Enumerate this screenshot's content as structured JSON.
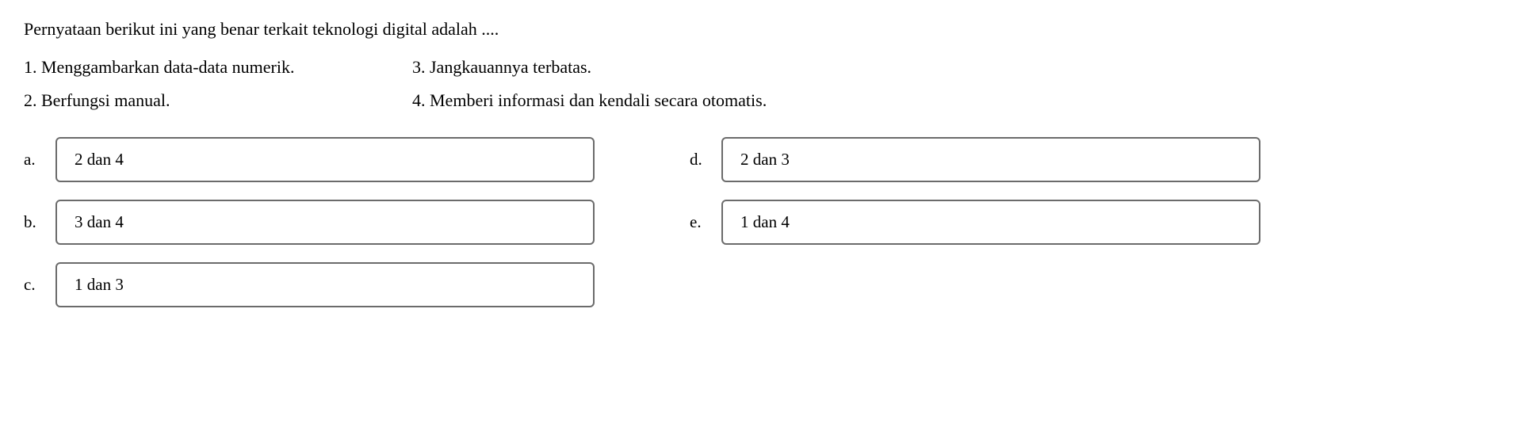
{
  "question": "Pernyataan berikut ini yang benar terkait teknologi digital  adalah ....",
  "statements": {
    "left": [
      "1. Menggambarkan data-data numerik.",
      "2. Berfungsi manual."
    ],
    "right": [
      "3. Jangkauannya terbatas.",
      "4. Memberi informasi dan kendali secara otomatis."
    ]
  },
  "options": {
    "left": [
      {
        "letter": "a.",
        "text": "2 dan 4"
      },
      {
        "letter": "b.",
        "text": "3 dan 4"
      },
      {
        "letter": "c.",
        "text": "1 dan 3"
      }
    ],
    "right": [
      {
        "letter": "d.",
        "text": "2 dan 3"
      },
      {
        "letter": "e.",
        "text": "1 dan 4"
      }
    ]
  },
  "colors": {
    "text": "#000000",
    "background": "#ffffff",
    "border": "#6b6b6b"
  },
  "layout": {
    "option_box_width": 680,
    "option_box_border_radius": 6,
    "option_box_border_width": 2,
    "font_size": 22
  }
}
